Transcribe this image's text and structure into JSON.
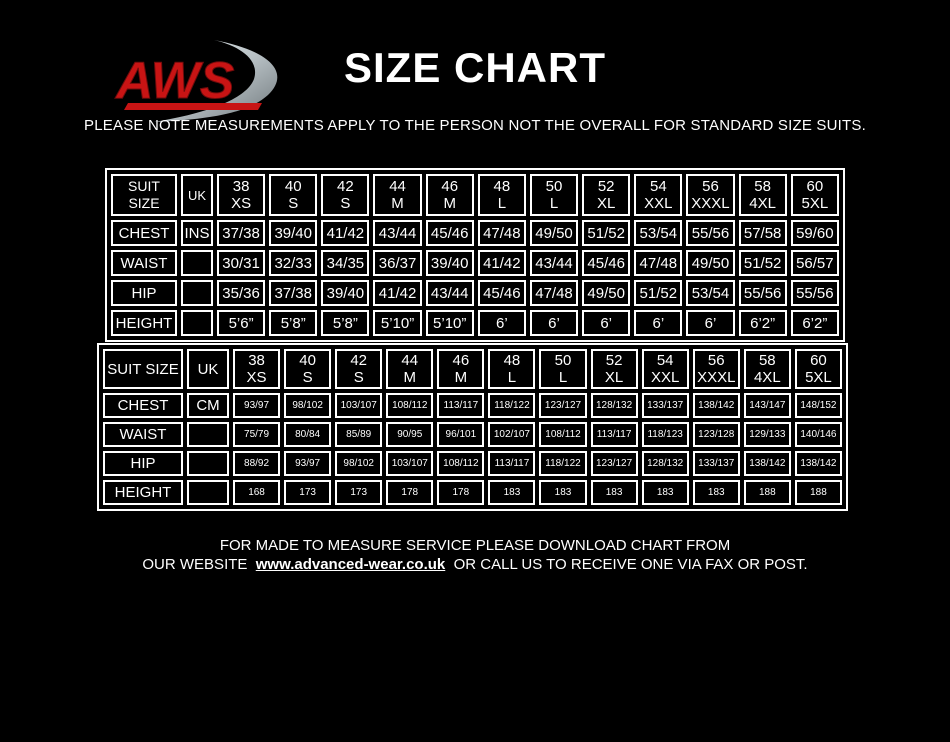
{
  "page": {
    "background": "#000000",
    "text_color": "#ffffff"
  },
  "logo": {
    "text": "AWS",
    "color": "#c81414",
    "swoosh_color": "#b9c2c6"
  },
  "header": {
    "title": "SIZE CHART",
    "note": "PLEASE NOTE MEASUREMENTS APPLY TO THE PERSON NOT THE OVERALL FOR STANDARD SIZE SUITS."
  },
  "size_tables": [
    {
      "id": "inches",
      "corner_label": "SUIT SIZE",
      "unit_col_header": "UK",
      "sizes": [
        {
          "num": "38",
          "fit": "XS"
        },
        {
          "num": "40",
          "fit": "S"
        },
        {
          "num": "42",
          "fit": "S"
        },
        {
          "num": "44",
          "fit": "M"
        },
        {
          "num": "46",
          "fit": "M"
        },
        {
          "num": "48",
          "fit": "L"
        },
        {
          "num": "50",
          "fit": "L"
        },
        {
          "num": "52",
          "fit": "XL"
        },
        {
          "num": "54",
          "fit": "XXL"
        },
        {
          "num": "56",
          "fit": "XXXL"
        },
        {
          "num": "58",
          "fit": "4XL"
        },
        {
          "num": "60",
          "fit": "5XL"
        }
      ],
      "rows": [
        {
          "label": "CHEST",
          "unit": "INS",
          "values": [
            "37/38",
            "39/40",
            "41/42",
            "43/44",
            "45/46",
            "47/48",
            "49/50",
            "51/52",
            "53/54",
            "55/56",
            "57/58",
            "59/60"
          ]
        },
        {
          "label": "WAIST",
          "unit": "",
          "values": [
            "30/31",
            "32/33",
            "34/35",
            "36/37",
            "39/40",
            "41/42",
            "43/44",
            "45/46",
            "47/48",
            "49/50",
            "51/52",
            "56/57"
          ]
        },
        {
          "label": "HIP",
          "unit": "",
          "values": [
            "35/36",
            "37/38",
            "39/40",
            "41/42",
            "43/44",
            "45/46",
            "47/48",
            "49/50",
            "51/52",
            "53/54",
            "55/56",
            "55/56"
          ]
        },
        {
          "label": "HEIGHT",
          "unit": "",
          "values": [
            "5’6”",
            "5’8”",
            "5’8”",
            "5’10”",
            "5’10”",
            "6’",
            "6’",
            "6’",
            "6’",
            "6’",
            "6’2”",
            "6’2”"
          ]
        }
      ]
    },
    {
      "id": "cm",
      "corner_label": "SUIT SIZE",
      "unit_col_header": "UK",
      "sizes": [
        {
          "num": "38",
          "fit": "XS"
        },
        {
          "num": "40",
          "fit": "S"
        },
        {
          "num": "42",
          "fit": "S"
        },
        {
          "num": "44",
          "fit": "M"
        },
        {
          "num": "46",
          "fit": "M"
        },
        {
          "num": "48",
          "fit": "L"
        },
        {
          "num": "50",
          "fit": "L"
        },
        {
          "num": "52",
          "fit": "XL"
        },
        {
          "num": "54",
          "fit": "XXL"
        },
        {
          "num": "56",
          "fit": "XXXL"
        },
        {
          "num": "58",
          "fit": "4XL"
        },
        {
          "num": "60",
          "fit": "5XL"
        }
      ],
      "rows": [
        {
          "label": "CHEST",
          "unit": "CM",
          "values": [
            "93/97",
            "98/102",
            "103/107",
            "108/112",
            "113/117",
            "118/122",
            "123/127",
            "128/132",
            "133/137",
            "138/142",
            "143/147",
            "148/152"
          ]
        },
        {
          "label": "WAIST",
          "unit": "",
          "values": [
            "75/79",
            "80/84",
            "85/89",
            "90/95",
            "96/101",
            "102/107",
            "108/112",
            "113/117",
            "118/123",
            "123/128",
            "129/133",
            "140/146"
          ]
        },
        {
          "label": "HIP",
          "unit": "",
          "values": [
            "88/92",
            "93/97",
            "98/102",
            "103/107",
            "108/112",
            "113/117",
            "118/122",
            "123/127",
            "128/132",
            "133/137",
            "138/142",
            "138/142"
          ]
        },
        {
          "label": "HEIGHT",
          "unit": "",
          "values": [
            "168",
            "173",
            "173",
            "178",
            "178",
            "183",
            "183",
            "183",
            "183",
            "183",
            "188",
            "188"
          ]
        }
      ]
    }
  ],
  "footer": {
    "line1": "FOR MADE TO MEASURE SERVICE PLEASE DOWNLOAD CHART FROM",
    "line2_prefix": "OUR WEBSITE",
    "website": "www.advanced-wear.co.uk",
    "line2_suffix": "OR CALL US TO RECEIVE ONE VIA FAX OR POST."
  }
}
